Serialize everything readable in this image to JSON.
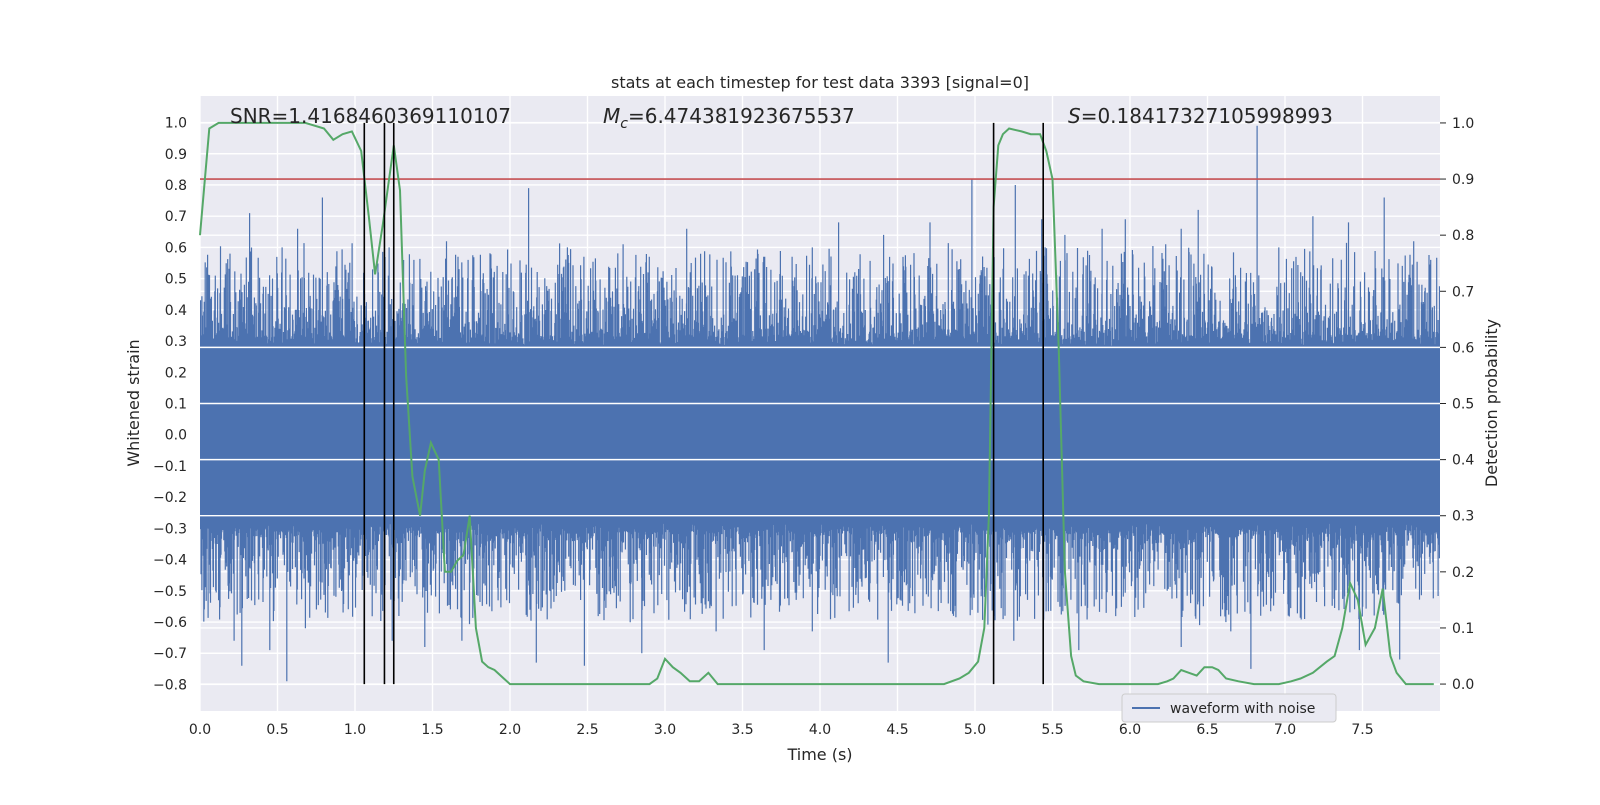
{
  "chart_data": {
    "type": "line",
    "title": "stats at each timestep for test data 3393 [signal=0]",
    "xlabel": "Time (s)",
    "ylabel_left": "Whitened strain",
    "ylabel_right": "Detection probability",
    "xlim": [
      0.0,
      8.0
    ],
    "ylim_left": [
      -0.885,
      1.085
    ],
    "ylim_right": [
      -0.048,
      1.048
    ],
    "x_ticks": [
      "0.0",
      "0.5",
      "1.0",
      "1.5",
      "2.0",
      "2.5",
      "3.0",
      "3.5",
      "4.0",
      "4.5",
      "5.0",
      "5.5",
      "6.0",
      "6.5",
      "7.0",
      "7.5"
    ],
    "y_left_ticks": [
      "-0.8",
      "-0.7",
      "-0.6",
      "-0.5",
      "-0.4",
      "-0.3",
      "-0.2",
      "-0.1",
      "0.0",
      "0.1",
      "0.2",
      "0.3",
      "0.4",
      "0.5",
      "0.6",
      "0.7",
      "0.8",
      "0.9",
      "1.0"
    ],
    "y_right_ticks": [
      "0.0",
      "0.1",
      "0.2",
      "0.3",
      "0.4",
      "0.5",
      "0.6",
      "0.7",
      "0.8",
      "0.9",
      "1.0"
    ],
    "grid": true,
    "legend_position": "lower-right",
    "annotations": {
      "snr": "SNR=1.4168460369110107",
      "mc_symbol": "M",
      "mc_subscript": "c",
      "mc_value": "=6.474381923675537",
      "s_symbol": "S",
      "s_value": "=0.18417327105998993"
    },
    "threshold": 0.9,
    "event_lines_x": [
      1.06,
      1.19,
      1.25,
      5.12,
      5.44
    ],
    "series": [
      {
        "name": "waveform with noise",
        "axis": "left",
        "color": "#4c72b0",
        "noise_envelope": {
          "core": 0.28,
          "upper_peak": 0.8,
          "lower_peak": -0.8
        },
        "spikes": [
          [
            0.17,
            0.52
          ],
          [
            0.32,
            0.71
          ],
          [
            0.53,
            0.6
          ],
          [
            0.63,
            0.66
          ],
          [
            0.79,
            0.76
          ],
          [
            1.15,
            0.52
          ],
          [
            1.22,
            0.6
          ],
          [
            1.38,
            0.56
          ],
          [
            1.59,
            0.62
          ],
          [
            1.73,
            0.56
          ],
          [
            2.12,
            0.79
          ],
          [
            2.37,
            0.6
          ],
          [
            2.73,
            0.61
          ],
          [
            2.89,
            0.52
          ],
          [
            3.14,
            0.66
          ],
          [
            3.23,
            0.58
          ],
          [
            3.82,
            0.57
          ],
          [
            3.95,
            0.6
          ],
          [
            4.12,
            0.68
          ],
          [
            4.41,
            0.64
          ],
          [
            4.71,
            0.68
          ],
          [
            4.98,
            0.82
          ],
          [
            5.26,
            0.8
          ],
          [
            5.43,
            0.69
          ],
          [
            5.58,
            0.64
          ],
          [
            5.82,
            0.66
          ],
          [
            5.97,
            0.69
          ],
          [
            6.23,
            0.61
          ],
          [
            6.33,
            0.66
          ],
          [
            6.44,
            0.72
          ],
          [
            6.82,
            0.99
          ],
          [
            6.96,
            0.6
          ],
          [
            7.18,
            0.7
          ],
          [
            7.41,
            0.68
          ],
          [
            7.64,
            0.76
          ],
          [
            7.83,
            0.62
          ],
          [
            7.94,
            0.56
          ],
          [
            0.22,
            -0.66
          ],
          [
            0.27,
            -0.74
          ],
          [
            0.45,
            -0.69
          ],
          [
            0.56,
            -0.79
          ],
          [
            0.68,
            -0.62
          ],
          [
            1.24,
            -0.66
          ],
          [
            1.45,
            -0.68
          ],
          [
            1.69,
            -0.66
          ],
          [
            2.17,
            -0.73
          ],
          [
            2.48,
            -0.74
          ],
          [
            2.85,
            -0.7
          ],
          [
            3.33,
            -0.63
          ],
          [
            3.64,
            -0.69
          ],
          [
            3.95,
            -0.63
          ],
          [
            4.44,
            -0.73
          ],
          [
            5.25,
            -0.66
          ],
          [
            5.67,
            -0.69
          ],
          [
            6.33,
            -0.68
          ],
          [
            6.65,
            -0.63
          ],
          [
            6.78,
            -0.75
          ],
          [
            7.48,
            -0.69
          ],
          [
            7.74,
            -0.72
          ]
        ]
      },
      {
        "name": "",
        "axis": "right",
        "color": "#55a868",
        "x": [
          0.0,
          0.06,
          0.12,
          0.25,
          0.4,
          0.55,
          0.68,
          0.8,
          0.86,
          0.92,
          0.98,
          1.04,
          1.09,
          1.13,
          1.18,
          1.22,
          1.25,
          1.29,
          1.33,
          1.37,
          1.42,
          1.45,
          1.49,
          1.54,
          1.58,
          1.62,
          1.66,
          1.7,
          1.74,
          1.78,
          1.82,
          1.86,
          1.9,
          1.96,
          2.0,
          2.1,
          2.3,
          2.4,
          2.5,
          2.62,
          2.8,
          2.9,
          2.95,
          3.0,
          3.05,
          3.1,
          3.16,
          3.22,
          3.28,
          3.34,
          3.5,
          3.8,
          4.2,
          4.6,
          4.8,
          4.9,
          4.96,
          5.02,
          5.06,
          5.09,
          5.12,
          5.15,
          5.18,
          5.22,
          5.3,
          5.36,
          5.42,
          5.46,
          5.5,
          5.54,
          5.58,
          5.62,
          5.65,
          5.7,
          5.8,
          6.0,
          6.18,
          6.24,
          6.28,
          6.33,
          6.38,
          6.43,
          6.48,
          6.53,
          6.57,
          6.62,
          6.7,
          6.8,
          6.96,
          7.04,
          7.1,
          7.18,
          7.27,
          7.32,
          7.37,
          7.42,
          7.47,
          7.52,
          7.58,
          7.63,
          7.68,
          7.72,
          7.78,
          7.86,
          7.96
        ],
        "values": [
          0.8,
          0.99,
          1.0,
          1.0,
          1.0,
          1.0,
          1.0,
          0.99,
          0.97,
          0.98,
          0.985,
          0.95,
          0.83,
          0.73,
          0.82,
          0.9,
          0.96,
          0.88,
          0.55,
          0.37,
          0.3,
          0.38,
          0.43,
          0.4,
          0.2,
          0.2,
          0.22,
          0.23,
          0.3,
          0.1,
          0.04,
          0.03,
          0.025,
          0.01,
          0.0,
          0.0,
          0.0,
          0.0,
          0.0,
          0.0,
          0.0,
          0.0,
          0.01,
          0.045,
          0.03,
          0.02,
          0.005,
          0.005,
          0.02,
          0.0,
          0.0,
          0.0,
          0.0,
          0.0,
          0.0,
          0.01,
          0.02,
          0.04,
          0.1,
          0.3,
          0.85,
          0.96,
          0.98,
          0.99,
          0.985,
          0.98,
          0.98,
          0.95,
          0.9,
          0.6,
          0.2,
          0.05,
          0.015,
          0.005,
          0.0,
          0.0,
          0.0,
          0.005,
          0.01,
          0.025,
          0.02,
          0.015,
          0.03,
          0.03,
          0.025,
          0.01,
          0.005,
          0.0,
          0.0,
          0.005,
          0.01,
          0.02,
          0.04,
          0.05,
          0.1,
          0.18,
          0.15,
          0.07,
          0.1,
          0.17,
          0.05,
          0.02,
          0.0,
          0.0,
          0.0
        ]
      }
    ]
  }
}
